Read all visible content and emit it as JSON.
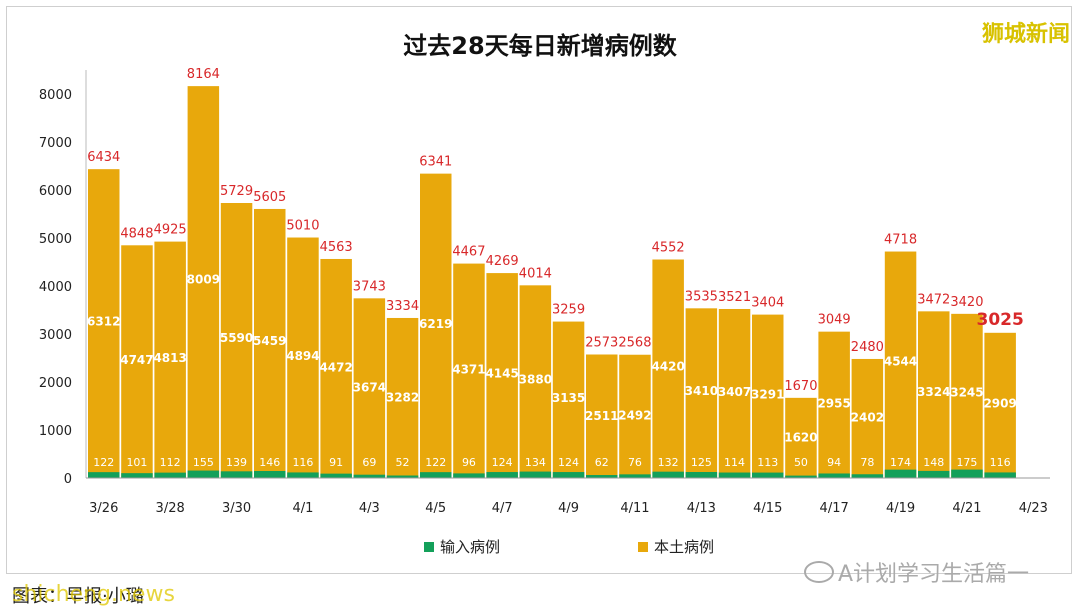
{
  "watermark_top": "狮城新闻",
  "caption": "图表：早报·小璐",
  "watermark_bottom_left": "shicheng.news",
  "wechat_account": "A计划学习生活篇一",
  "chart_data": {
    "type": "bar",
    "stacked": true,
    "title": "过去28天每日新增病例数",
    "categories": [
      "3/26",
      "3/27",
      "3/28",
      "3/29",
      "3/30",
      "3/31",
      "4/1",
      "4/2",
      "4/3",
      "4/4",
      "4/5",
      "4/6",
      "4/7",
      "4/8",
      "4/9",
      "4/10",
      "4/11",
      "4/12",
      "4/13",
      "4/14",
      "4/15",
      "4/16",
      "4/17",
      "4/18",
      "4/19",
      "4/20",
      "4/21",
      "4/22",
      "4/23"
    ],
    "x_tick_labels": [
      "3/26",
      "3/28",
      "3/30",
      "4/1",
      "4/3",
      "4/5",
      "4/7",
      "4/9",
      "4/11",
      "4/13",
      "4/15",
      "4/17",
      "4/19",
      "4/21",
      "4/23"
    ],
    "series": [
      {
        "name": "输入病例",
        "color": "#13a05a",
        "values": [
          122,
          101,
          112,
          155,
          139,
          146,
          116,
          91,
          69,
          52,
          122,
          96,
          124,
          134,
          124,
          62,
          76,
          132,
          125,
          114,
          113,
          50,
          94,
          78,
          174,
          148,
          175,
          116,
          null
        ]
      },
      {
        "name": "本土病例",
        "color": "#e8a80c",
        "values": [
          6312,
          4747,
          4813,
          8009,
          5590,
          5459,
          4894,
          4472,
          3674,
          3282,
          6219,
          4371,
          4145,
          3880,
          3135,
          2511,
          2492,
          4420,
          3410,
          3407,
          3291,
          1620,
          2955,
          2402,
          4544,
          3324,
          3245,
          2909,
          null
        ]
      }
    ],
    "totals": [
      6434,
      4848,
      4925,
      8164,
      5729,
      5605,
      5010,
      4563,
      3743,
      3334,
      6341,
      4467,
      4269,
      4014,
      3259,
      2573,
      2568,
      4552,
      3535,
      3521,
      3404,
      1670,
      3049,
      2480,
      4718,
      3472,
      3420,
      3025,
      null
    ],
    "y_ticks": [
      0,
      1000,
      2000,
      3000,
      4000,
      5000,
      6000,
      7000,
      8000
    ],
    "ylim": [
      0,
      8500
    ],
    "legend": "bottom",
    "grid": false
  }
}
